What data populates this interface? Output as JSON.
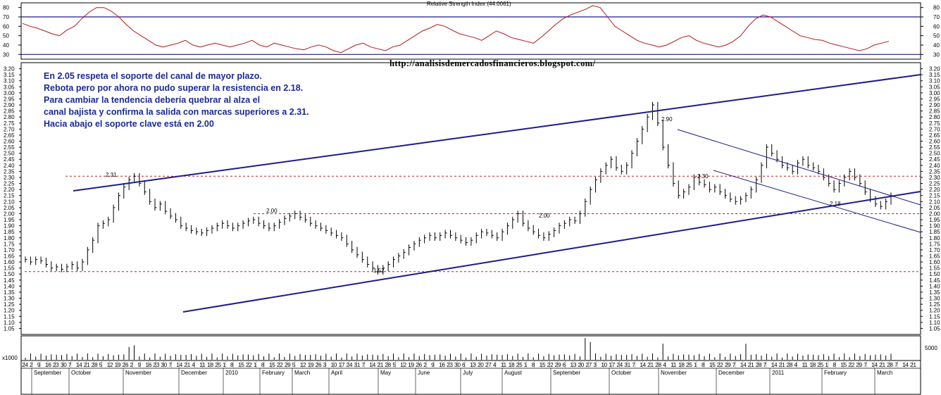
{
  "chart_data": {
    "type": "line",
    "title": "",
    "watermark_url": "http://analisisdemercadosfinancieros.blogspot.com/",
    "annotation_lines": [
      "En 2.05 respeta el soporte del canal de mayor plazo.",
      "Rebota pero por ahora no pudo superar la resistencia en 2.18.",
      "Para cambiar la tendencia debería quebrar al alza el",
      "canal bajista y confirma la salida con marcas superiores a 2.31.",
      "Hacia abajo el soporte clave está en 2.00"
    ],
    "price_axis": {
      "min": 1.0,
      "max": 3.25,
      "ticks": [
        "3.20",
        "3.15",
        "3.10",
        "3.05",
        "3.00",
        "2.95",
        "2.90",
        "2.85",
        "2.80",
        "2.75",
        "2.70",
        "2.65",
        "2.60",
        "2.55",
        "2.50",
        "2.45",
        "2.40",
        "2.35",
        "2.30",
        "2.25",
        "2.20",
        "2.15",
        "2.10",
        "2.05",
        "2.00",
        "1.95",
        "1.90",
        "1.85",
        "1.80",
        "1.75",
        "1.70",
        "1.65",
        "1.60",
        "1.55",
        "1.50",
        "1.45",
        "1.40",
        "1.35",
        "1.30",
        "1.25",
        "1.20",
        "1.15",
        "1.10",
        "1.05"
      ]
    },
    "rsi": {
      "label": "Relative Strength Index (44.0061)",
      "ticks": [
        "80",
        "70",
        "60",
        "50",
        "40",
        "30"
      ],
      "reference_levels": [
        70,
        30
      ],
      "series": [
        63,
        60,
        58,
        55,
        52,
        50,
        56,
        60,
        68,
        75,
        80,
        80,
        76,
        70,
        62,
        55,
        50,
        45,
        40,
        38,
        40,
        42,
        45,
        40,
        38,
        40,
        42,
        40,
        38,
        40,
        42,
        45,
        40,
        38,
        42,
        40,
        38,
        36,
        35,
        38,
        40,
        38,
        34,
        32,
        36,
        40,
        42,
        38,
        36,
        34,
        38,
        40,
        45,
        50,
        55,
        58,
        62,
        60,
        56,
        52,
        50,
        48,
        45,
        50,
        55,
        52,
        48,
        46,
        44,
        42,
        48,
        55,
        62,
        68,
        72,
        75,
        78,
        82,
        80,
        70,
        60,
        55,
        50,
        45,
        42,
        40,
        38,
        40,
        44,
        48,
        50,
        45,
        42,
        40,
        38,
        40,
        44,
        50,
        60,
        68,
        72,
        70,
        65,
        60,
        55,
        50,
        48,
        46,
        45,
        42,
        40,
        38,
        36,
        34,
        36,
        40,
        42,
        44
      ]
    },
    "volume": {
      "tick": "5000",
      "note": "x1000"
    },
    "price_levels_dotted": [
      2.31,
      2.0,
      1.52
    ],
    "labels": [
      {
        "text": "2.31",
        "price": 2.31
      },
      {
        "text": "2.00",
        "price": 2.0
      },
      {
        "text": "2.00",
        "price": 2.0
      },
      {
        "text": "1.52",
        "price": 1.52
      },
      {
        "text": "2.90",
        "price": 2.9
      },
      {
        "text": "2.30",
        "price": 2.3
      },
      {
        "text": "2.18",
        "price": 2.18
      }
    ],
    "x_axis": {
      "day_ticks": [
        "24",
        "2",
        "9",
        "16",
        "23",
        "30",
        "7",
        "14",
        "21",
        "28",
        "5",
        "12",
        "19",
        "26",
        "2",
        "9",
        "16",
        "23",
        "30",
        "7",
        "14",
        "21",
        "4",
        "11",
        "18",
        "25",
        "1",
        "8",
        "15",
        "22",
        "1",
        "8",
        "15",
        "22",
        "29",
        "5",
        "12",
        "19",
        "26",
        "3",
        "10",
        "17",
        "24",
        "31",
        "7",
        "14",
        "21",
        "28",
        "5",
        "12",
        "19",
        "26",
        "2",
        "9",
        "16",
        "23",
        "30",
        "6",
        "13",
        "20",
        "27",
        "4",
        "11",
        "18",
        "25",
        "1",
        "8",
        "15",
        "22",
        "29",
        "6",
        "13",
        "20",
        "27",
        "3",
        "10",
        "17",
        "24",
        "31",
        "7",
        "14",
        "21",
        "28",
        "4",
        "11",
        "18",
        "25",
        "1",
        "8",
        "15",
        "22",
        "29",
        "7",
        "14",
        "21",
        "28",
        "7",
        "14",
        "21",
        "28",
        "4",
        "11",
        "18",
        "25",
        "1",
        "8",
        "15",
        "22",
        "29",
        "7",
        "14",
        "21",
        "28",
        "7",
        "14",
        "21"
      ],
      "month_labels": [
        "September",
        "October",
        "November",
        "December",
        "2010",
        "February",
        "March",
        "April",
        "May",
        "June",
        "July",
        "August",
        "September",
        "October",
        "November",
        "December",
        "2011",
        "February",
        "March"
      ]
    },
    "price_series": [
      1.62,
      1.6,
      1.62,
      1.61,
      1.58,
      1.55,
      1.56,
      1.54,
      1.56,
      1.58,
      1.55,
      1.6,
      1.7,
      1.78,
      1.9,
      1.92,
      1.95,
      2.05,
      2.15,
      2.22,
      2.28,
      2.31,
      2.25,
      2.18,
      2.1,
      2.05,
      2.08,
      2.02,
      1.98,
      1.95,
      1.9,
      1.88,
      1.86,
      1.85,
      1.84,
      1.86,
      1.88,
      1.9,
      1.92,
      1.9,
      1.88,
      1.9,
      1.92,
      1.94,
      1.95,
      1.92,
      1.9,
      1.88,
      1.9,
      1.93,
      1.96,
      1.98,
      2.0,
      1.97,
      1.95,
      1.92,
      1.9,
      1.88,
      1.86,
      1.84,
      1.82,
      1.8,
      1.75,
      1.7,
      1.66,
      1.62,
      1.58,
      1.55,
      1.52,
      1.55,
      1.58,
      1.62,
      1.65,
      1.68,
      1.72,
      1.75,
      1.78,
      1.8,
      1.82,
      1.8,
      1.82,
      1.84,
      1.82,
      1.8,
      1.78,
      1.76,
      1.78,
      1.82,
      1.85,
      1.84,
      1.82,
      1.8,
      1.85,
      1.9,
      1.95,
      2.0,
      1.92,
      1.88,
      1.85,
      1.82,
      1.8,
      1.83,
      1.86,
      1.9,
      1.92,
      1.95,
      1.94,
      2.0,
      2.1,
      2.2,
      2.28,
      2.35,
      2.4,
      2.45,
      2.38,
      2.35,
      2.4,
      2.5,
      2.6,
      2.7,
      2.8,
      2.9,
      2.75,
      2.55,
      2.4,
      2.25,
      2.15,
      2.18,
      2.22,
      2.3,
      2.26,
      2.24,
      2.2,
      2.22,
      2.18,
      2.15,
      2.12,
      2.1,
      2.12,
      2.15,
      2.2,
      2.28,
      2.4,
      2.55,
      2.5,
      2.45,
      2.4,
      2.38,
      2.35,
      2.42,
      2.45,
      2.4,
      2.38,
      2.35,
      2.3,
      2.25,
      2.2,
      2.25,
      2.3,
      2.35,
      2.3,
      2.25,
      2.18,
      2.12,
      2.08,
      2.06,
      2.1,
      2.15
    ]
  }
}
